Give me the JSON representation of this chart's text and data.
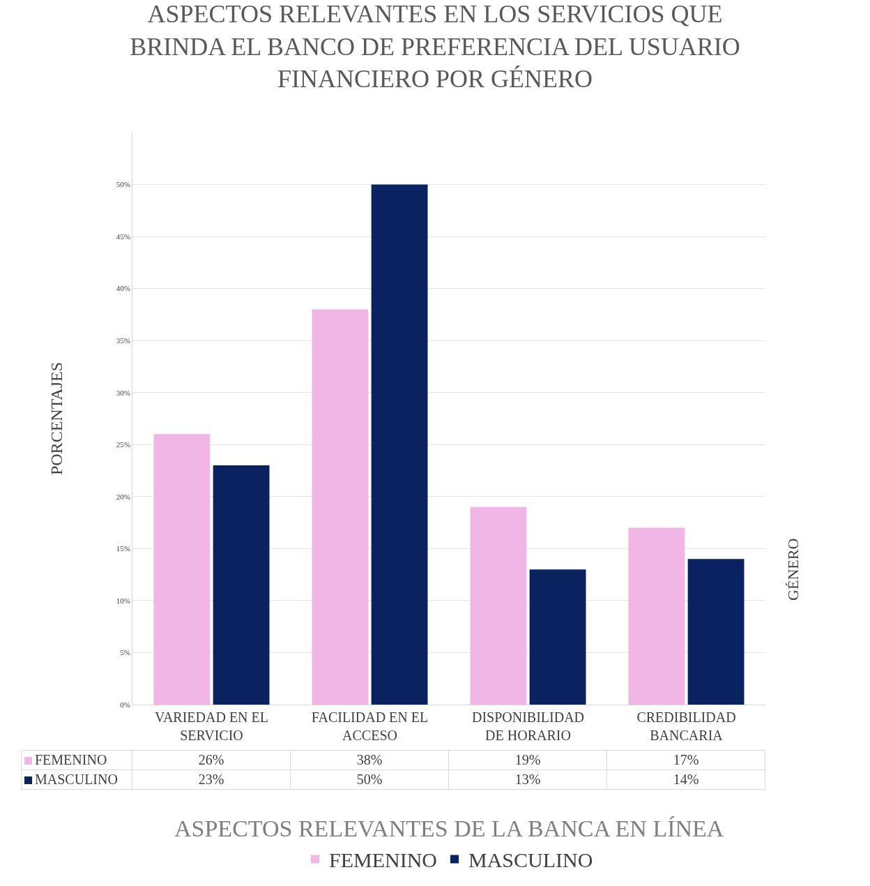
{
  "chart_data": {
    "type": "bar",
    "title": "ASPECTOS RELEVANTES EN LOS SERVICIOS QUE BRINDA EL BANCO DE PREFERENCIA DEL USUARIO FINANCIERO POR GÉNERO",
    "xlabel": "ASPECTOS RELEVANTES DE LA BANCA EN LÍNEA",
    "ylabel": "PORCENTAJES",
    "annotations": [
      "GÉNERO"
    ],
    "categories": [
      "VARIEDAD EN EL SERVICIO",
      "FACILIDAD EN EL ACCESO",
      "DISPONIBILIDAD DE HORARIO",
      "CREDIBILIDAD BANCARIA"
    ],
    "series": [
      {
        "name": "FEMENINO",
        "color": "#f2b6e6",
        "values": [
          26,
          38,
          19,
          17
        ],
        "value_labels": [
          "26%",
          "38%",
          "19%",
          "17%"
        ]
      },
      {
        "name": "MASCULINO",
        "color": "#0a2360",
        "values": [
          23,
          50,
          13,
          14
        ],
        "value_labels": [
          "23%",
          "50%",
          "13%",
          "14%"
        ]
      }
    ],
    "ylim": [
      0,
      55
    ],
    "yticks": [
      {
        "value": 0,
        "label": "0%"
      },
      {
        "value": 5,
        "label": "5%"
      },
      {
        "value": 10,
        "label": "10%"
      },
      {
        "value": 15,
        "label": "15%"
      },
      {
        "value": 20,
        "label": "20%"
      },
      {
        "value": 25,
        "label": "25%"
      },
      {
        "value": 30,
        "label": "30%"
      },
      {
        "value": 35,
        "label": "35%"
      },
      {
        "value": 40,
        "label": "40%"
      },
      {
        "value": 45,
        "label": "45%"
      },
      {
        "value": 50,
        "label": "50%"
      }
    ],
    "grid": "y",
    "legend": "bottom"
  }
}
